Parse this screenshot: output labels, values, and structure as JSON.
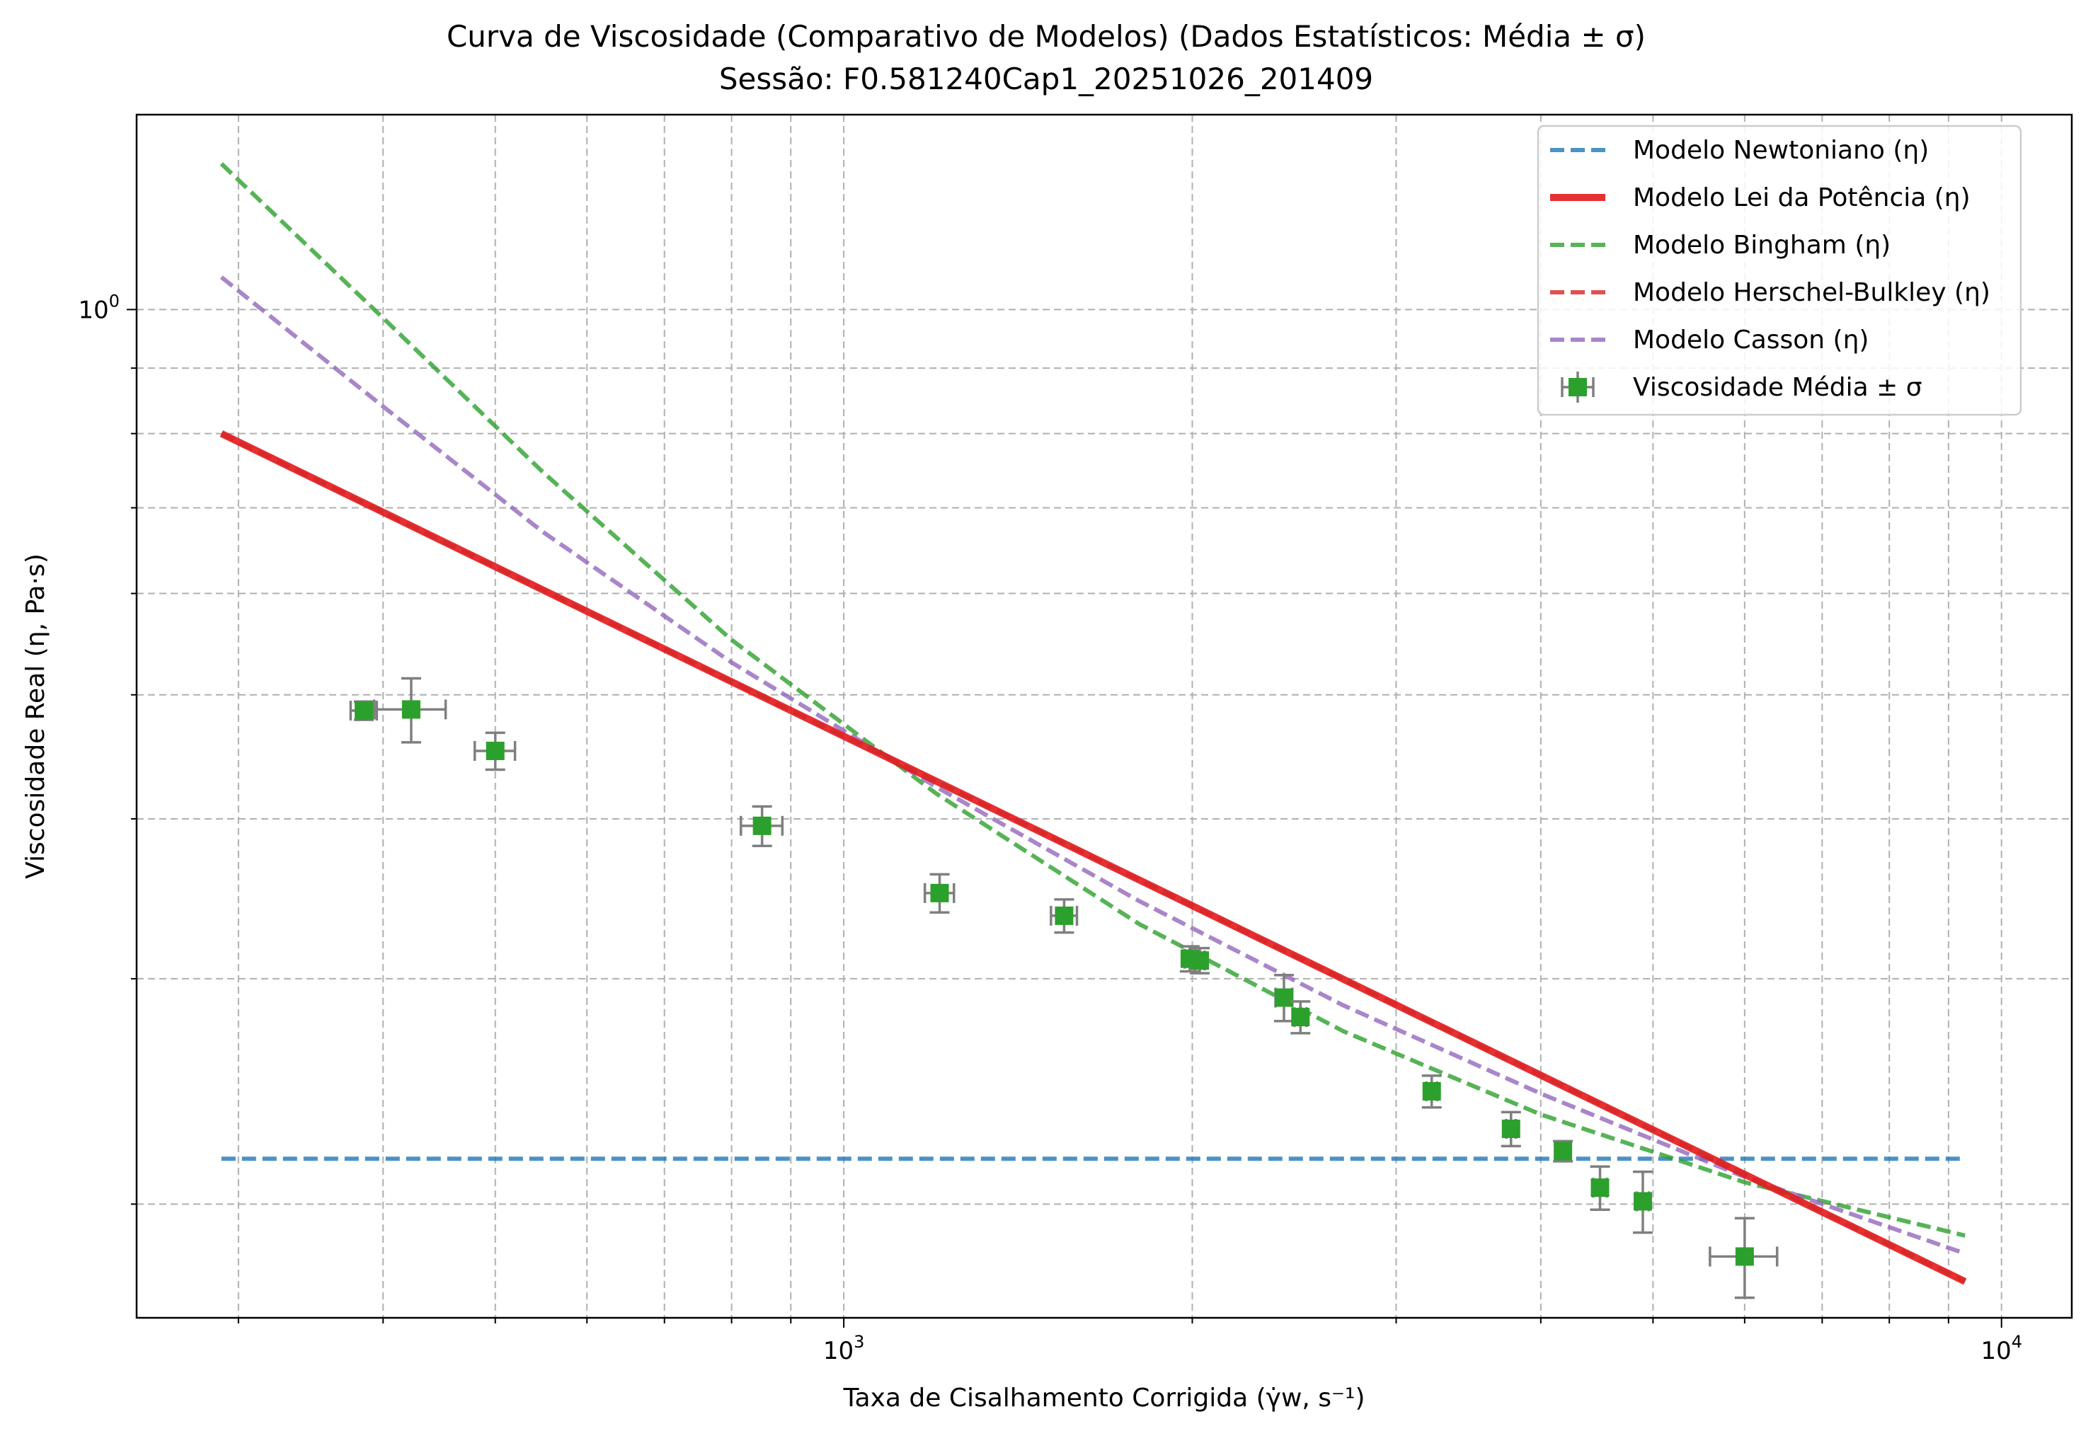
{
  "chart_data": {
    "type": "line",
    "title": "Curva de Viscosidade (Comparativo de Modelos) (Dados Estatísticos: Média ± σ)",
    "subtitle": "Sessão: F0.581240Cap1_20251026_201409",
    "xlabel": "Taxa de Cisalhamento Corrigida (γ̇w, s⁻¹)",
    "ylabel": "Viscosidade Real (η, Pa·s)",
    "xscale": "log",
    "yscale": "log",
    "xlim": [
      245,
      11500
    ],
    "ylim": [
      0.163,
      1.42
    ],
    "grid": true,
    "grid_minor": true,
    "legend_position": "top-right",
    "x_ticks": [
      {
        "value": 1000,
        "base": "10",
        "exp": "3"
      },
      {
        "value": 10000,
        "base": "10",
        "exp": "4"
      }
    ],
    "y_ticks": [
      {
        "value": 1.0,
        "base": "10",
        "exp": "0"
      }
    ],
    "series": [
      {
        "name": "Modelo Newtoniano (η)",
        "style": "dashed",
        "color": "#1f77b4",
        "x": [
          290,
          9300
        ],
        "y": [
          0.217,
          0.217
        ]
      },
      {
        "name": "Modelo Lei da Potência (η)",
        "style": "solid",
        "color": "#e41a1c",
        "x": [
          290,
          9300
        ],
        "y": [
          0.8,
          0.174
        ]
      },
      {
        "name": "Modelo Bingham (η)",
        "style": "dashed",
        "color": "#2ca02c",
        "x": [
          290,
          400,
          550,
          800,
          1200,
          1800,
          2700,
          4000,
          6000,
          9300
        ],
        "y": [
          1.3,
          0.985,
          0.746,
          0.552,
          0.419,
          0.331,
          0.273,
          0.235,
          0.208,
          0.189
        ]
      },
      {
        "name": "Modelo Herschel-Bulkley (η)",
        "style": "dashed",
        "color": "#d62728",
        "x": [
          290,
          9300
        ],
        "y": [
          0.8,
          0.174
        ]
      },
      {
        "name": "Modelo Casson (η)",
        "style": "dashed",
        "color": "#9467bd",
        "x": [
          290,
          400,
          550,
          800,
          1200,
          1800,
          2700,
          4000,
          6000,
          9300
        ],
        "y": [
          1.06,
          0.84,
          0.67,
          0.53,
          0.424,
          0.345,
          0.286,
          0.244,
          0.21,
          0.183
        ]
      }
    ],
    "points": {
      "name": "Viscosidade Média ± σ",
      "color": "#2ca02c",
      "error_color": "#7f7f7f",
      "x": [
        385,
        423,
        500,
        850,
        1210,
        1550,
        1990,
        2030,
        2400,
        2480,
        3220,
        3770,
        4180,
        4500,
        4900,
        6000
      ],
      "y": [
        0.486,
        0.487,
        0.452,
        0.395,
        0.35,
        0.336,
        0.311,
        0.31,
        0.29,
        0.28,
        0.245,
        0.229,
        0.22,
        0.206,
        0.201,
        0.182
      ],
      "xerr": [
        10,
        30,
        20,
        35,
        35,
        40,
        20,
        20,
        40,
        30,
        35,
        35,
        25,
        60,
        60,
        400
      ],
      "yerr": [
        0.008,
        0.028,
        0.015,
        0.014,
        0.012,
        0.01,
        0.007,
        0.007,
        0.012,
        0.008,
        0.007,
        0.007,
        0.004,
        0.008,
        0.011,
        0.013
      ]
    }
  }
}
